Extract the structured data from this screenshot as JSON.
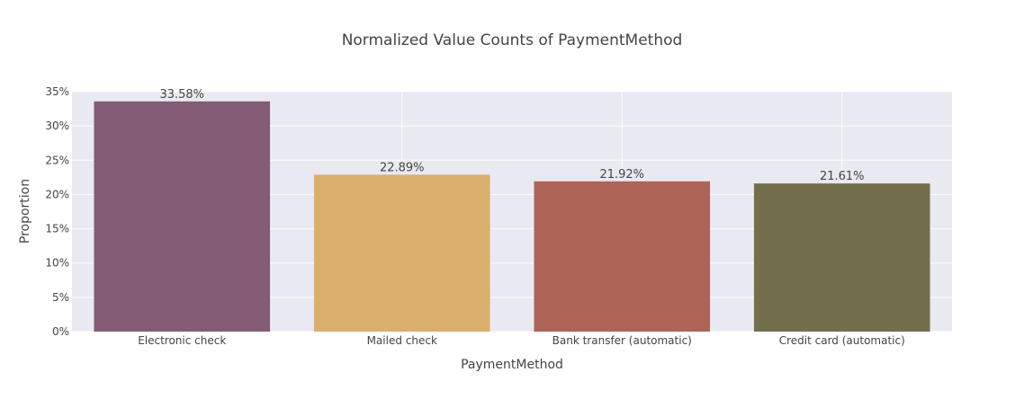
{
  "chart_data": {
    "type": "bar",
    "title": "Normalized Value Counts of PaymentMethod",
    "xlabel": "PaymentMethod",
    "ylabel": "Proportion",
    "categories": [
      "Electronic check",
      "Mailed check",
      "Bank transfer (automatic)",
      "Credit card (automatic)"
    ],
    "values": [
      0.3358,
      0.2289,
      0.2192,
      0.2161
    ],
    "data_labels": [
      "33.58%",
      "22.89%",
      "21.92%",
      "21.61%"
    ],
    "bar_colors": [
      "#855C75",
      "#D9AF6B",
      "#AF6458",
      "#736F4C"
    ],
    "ylim": [
      0,
      0.35
    ],
    "y_ticks": [
      0,
      0.05,
      0.1,
      0.15,
      0.2,
      0.25,
      0.3,
      0.35
    ],
    "y_tick_labels": [
      "0%",
      "5%",
      "10%",
      "15%",
      "20%",
      "25%",
      "30%",
      "35%"
    ],
    "grid": true,
    "legend": "none",
    "plot_background": "#E9E9F2",
    "grid_color": "#FFFFFF"
  }
}
